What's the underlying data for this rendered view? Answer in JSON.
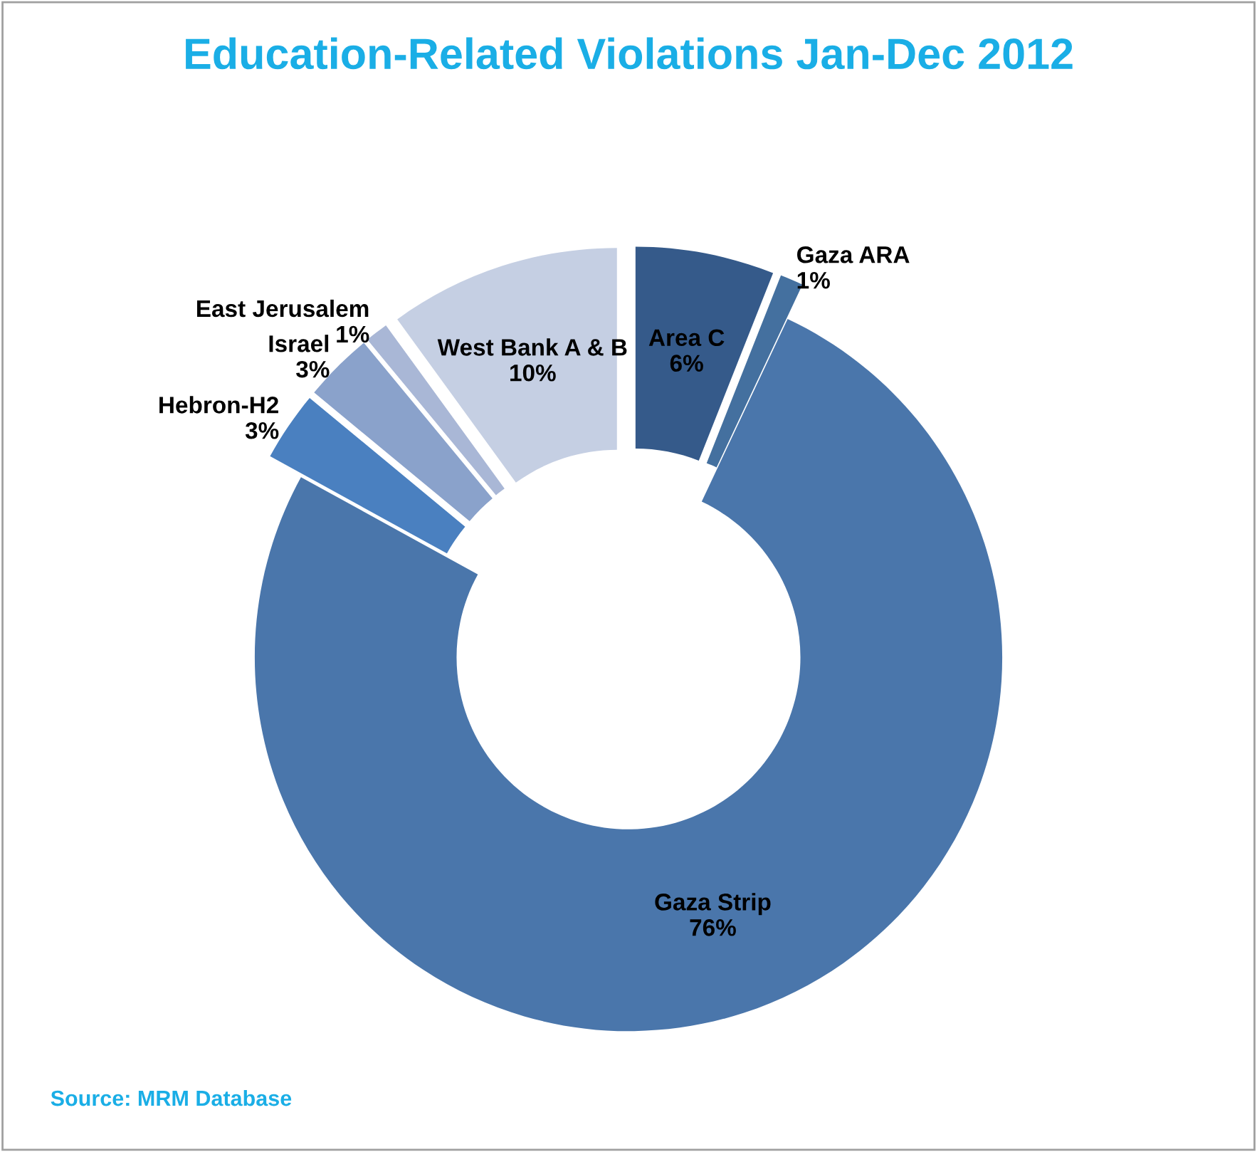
{
  "chart_data": {
    "type": "donut",
    "title": "Education-Related Violations Jan-Dec 2012",
    "categories": [
      "Area C",
      "Gaza ARA",
      "Gaza Strip",
      "Hebron-H2",
      "Israel",
      "East Jerusalem",
      "West Bank A & B"
    ],
    "values": [
      6,
      1,
      76,
      3,
      3,
      1,
      10
    ],
    "colors": [
      "#355a8a",
      "#44709f",
      "#4a76ab",
      "#4a80c0",
      "#8aa2cb",
      "#a9b7d6",
      "#c5cfe3"
    ],
    "value_labels": [
      "6%",
      "1%",
      "76%",
      "3%",
      "3%",
      "1%",
      "10%"
    ],
    "annotations": [
      "Source: MRM Database"
    ]
  }
}
